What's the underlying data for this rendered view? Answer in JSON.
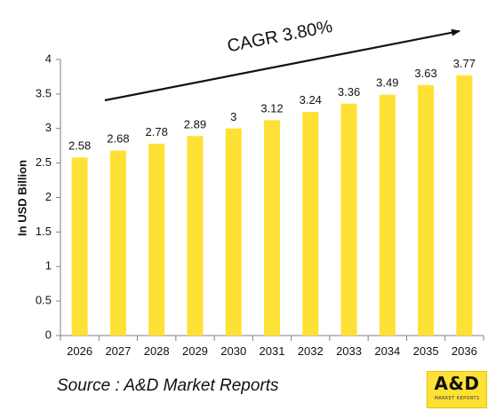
{
  "colors": {
    "bar": "#ffe135",
    "text": "#111111",
    "axis": "#808080",
    "arrow": "#111111"
  },
  "annotation": {
    "cagr_label": "CAGR 3.80%"
  },
  "source": {
    "text": "Source : A&D Market Reports"
  },
  "logo": {
    "main": "A&D",
    "sub": "MARKET REPORTS"
  },
  "chart_data": {
    "type": "bar",
    "title": "",
    "xlabel": "",
    "ylabel": "In USD Billion",
    "ylim": [
      0,
      4
    ],
    "yticks": [
      "0",
      "0.5",
      "1",
      "1.5",
      "2",
      "2.5",
      "3",
      "3.5",
      "4"
    ],
    "grid": false,
    "legend": "none",
    "categories": [
      "2026",
      "2027",
      "2028",
      "2029",
      "2030",
      "2031",
      "2032",
      "2033",
      "2034",
      "2035",
      "2036"
    ],
    "series": [
      {
        "values": [
          2.58,
          2.68,
          2.78,
          2.89,
          3,
          3.12,
          3.24,
          3.36,
          3.49,
          3.63,
          3.77
        ],
        "labels": [
          "2.58",
          "2.68",
          "2.78",
          "2.89",
          "3",
          "3.12",
          "3.24",
          "3.36",
          "3.49",
          "3.63",
          "3.77"
        ]
      }
    ]
  }
}
